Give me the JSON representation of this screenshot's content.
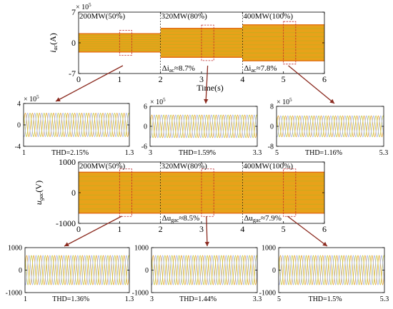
{
  "colors": {
    "band_fill": "#e8a21a",
    "band_stripe": "#b5b21f",
    "band_edge": "#e0620f",
    "phase_a": "#e6a93b",
    "phase_b": "#c9c94a",
    "phase_c": "#a8b3e0",
    "zoom_box": "#c0282a",
    "arrow": "#8b2a1f"
  },
  "chart_data": [
    {
      "id": "iac-overview",
      "type": "line",
      "title": "",
      "xlabel": "Time(s)",
      "ylabel_main": "i",
      "ylabel_sub": "ac",
      "ylabel_unit": "(A)",
      "x_exponent_label": "× 10",
      "exponent": "5",
      "xlim": [
        0,
        6
      ],
      "ylim": [
        -7,
        7
      ],
      "x_ticks": [
        "0",
        "1",
        "2",
        "3",
        "4",
        "5",
        "6"
      ],
      "y_ticks": [
        "7",
        "0",
        "-7"
      ],
      "segments": [
        {
          "label": "200MW(50%)",
          "t_start": 0,
          "t_end": 2,
          "amplitude": 2.2
        },
        {
          "label": "320MW(80%)",
          "t_start": 2,
          "t_end": 4,
          "amplitude": 3.4
        },
        {
          "label": "400MW(100%)",
          "t_start": 4,
          "t_end": 6,
          "amplitude": 4.2
        }
      ],
      "annotations": [
        {
          "prefix": "Δi",
          "sub": "ac",
          "value": "≈8.7%"
        },
        {
          "prefix": "Δi",
          "sub": "ac",
          "value": "≈7.8%"
        }
      ],
      "zoom_windows": [
        [
          1,
          1.3
        ],
        [
          3,
          3.3
        ],
        [
          5,
          5.3
        ]
      ]
    },
    {
      "id": "iac-zoom-1",
      "type": "line",
      "exponent_label": "× 10",
      "exponent": "5",
      "xlim": [
        1,
        1.3
      ],
      "ylim": [
        -4,
        4
      ],
      "x_ticks": [
        "1",
        "1.3"
      ],
      "y_ticks": [
        "4",
        "0",
        "-4"
      ],
      "amplitude": 2.2,
      "cycles": 15,
      "thd": "THD=2.15%"
    },
    {
      "id": "iac-zoom-2",
      "type": "line",
      "exponent_label": "× 10",
      "exponent": "5",
      "xlim": [
        3,
        3.3
      ],
      "ylim": [
        -6,
        6
      ],
      "x_ticks": [
        "3",
        "3.3"
      ],
      "y_ticks": [
        "6",
        "0",
        "-6"
      ],
      "amplitude": 3.4,
      "cycles": 15,
      "thd": "THD=1.59%"
    },
    {
      "id": "iac-zoom-3",
      "type": "line",
      "exponent_label": "× 10",
      "exponent": "5",
      "xlim": [
        5,
        5.3
      ],
      "ylim": [
        -8,
        8
      ],
      "x_ticks": [
        "5",
        "5.3"
      ],
      "y_ticks": [
        "8",
        "0",
        "-8"
      ],
      "amplitude": 4.2,
      "cycles": 15,
      "thd": "THD=1.16%"
    },
    {
      "id": "ugac-overview",
      "type": "line",
      "title": "",
      "xlabel": "",
      "ylabel_main": "u",
      "ylabel_sub": "gac",
      "ylabel_unit": "(V)",
      "xlim": [
        0,
        6
      ],
      "ylim": [
        -1000,
        1000
      ],
      "x_ticks": [
        "0",
        "1",
        "2",
        "3",
        "4",
        "5",
        "6"
      ],
      "y_ticks": [
        "1000",
        "0",
        "-1000"
      ],
      "segments": [
        {
          "label": "200MW(50%)",
          "t_start": 0,
          "t_end": 2,
          "amplitude": 680
        },
        {
          "label": "320MW(80%)",
          "t_start": 2,
          "t_end": 4,
          "amplitude": 680
        },
        {
          "label": "400MW(100%)",
          "t_start": 4,
          "t_end": 6,
          "amplitude": 680
        }
      ],
      "annotations": [
        {
          "prefix": "Δu",
          "sub": "gac",
          "value": "≈8.5%"
        },
        {
          "prefix": "Δu",
          "sub": "gac",
          "value": "≈7.9%"
        }
      ],
      "zoom_windows": [
        [
          1,
          1.3
        ],
        [
          3,
          3.3
        ],
        [
          5,
          5.3
        ]
      ]
    },
    {
      "id": "ugac-zoom-1",
      "type": "line",
      "xlim": [
        1,
        1.3
      ],
      "ylim": [
        -1000,
        1000
      ],
      "x_ticks": [
        "1",
        "1.3"
      ],
      "y_ticks": [
        "1000",
        "0",
        "-1000"
      ],
      "amplitude": 650,
      "cycles": 15,
      "thd": "THD=1.36%"
    },
    {
      "id": "ugac-zoom-2",
      "type": "line",
      "xlim": [
        3,
        3.3
      ],
      "ylim": [
        -1000,
        1000
      ],
      "x_ticks": [
        "3",
        "3.3"
      ],
      "y_ticks": [
        "1000",
        "0",
        "-1000"
      ],
      "amplitude": 650,
      "cycles": 15,
      "thd": "THD=1.44%"
    },
    {
      "id": "ugac-zoom-3",
      "type": "line",
      "xlim": [
        5,
        5.3
      ],
      "ylim": [
        -1000,
        1000
      ],
      "x_ticks": [
        "5",
        "5.3"
      ],
      "y_ticks": [
        "1000",
        "0",
        "-1000"
      ],
      "amplitude": 650,
      "cycles": 15,
      "thd": "THD=1.5%"
    }
  ]
}
